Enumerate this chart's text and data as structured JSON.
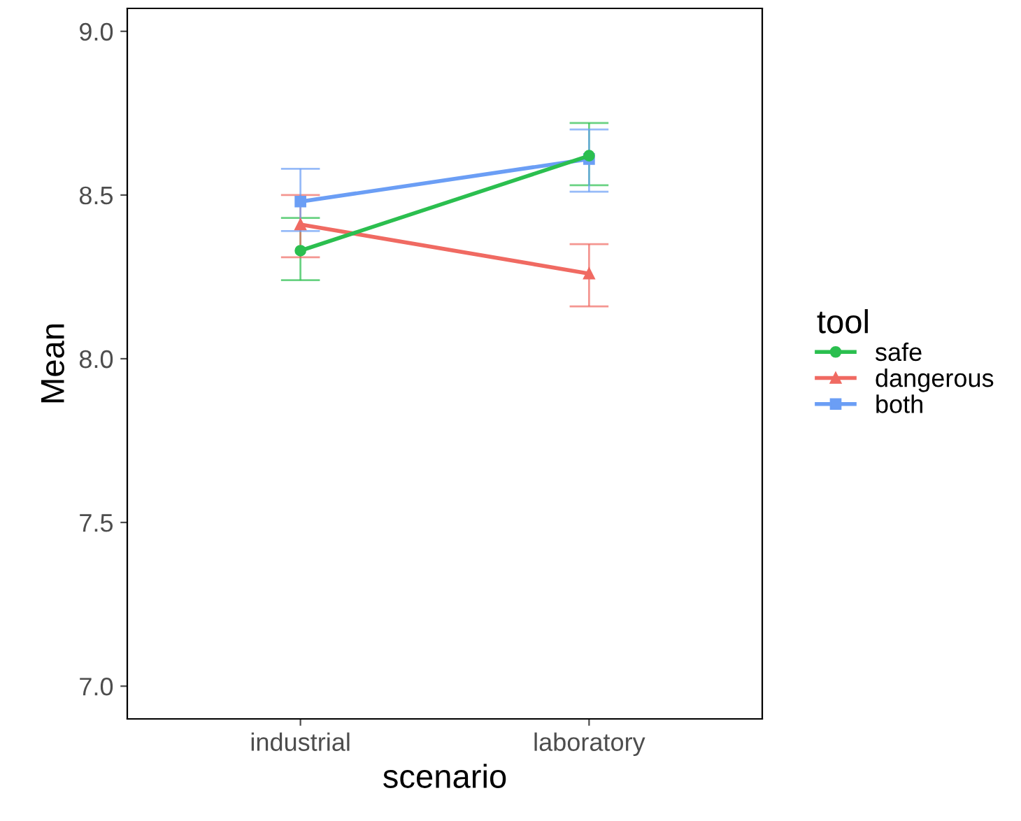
{
  "chart_data": {
    "type": "line",
    "xlabel": "scenario",
    "ylabel": "Mean",
    "legend_title": "tool",
    "categories": [
      "industrial",
      "laboratory"
    ],
    "series": [
      {
        "name": "safe",
        "color": "#2bbf4f",
        "marker": "circle",
        "values": [
          8.33,
          8.62
        ],
        "errors": [
          [
            8.24,
            8.43
          ],
          [
            8.53,
            8.72
          ]
        ]
      },
      {
        "name": "dangerous",
        "color": "#f06a62",
        "marker": "triangle",
        "values": [
          8.41,
          8.26
        ],
        "errors": [
          [
            8.31,
            8.5
          ],
          [
            8.16,
            8.35
          ]
        ]
      },
      {
        "name": "both",
        "color": "#6b9ef5",
        "marker": "square",
        "values": [
          8.48,
          8.61
        ],
        "errors": [
          [
            8.39,
            8.58
          ],
          [
            8.51,
            8.7
          ]
        ]
      }
    ],
    "ylim": [
      6.9,
      9.07
    ],
    "yticks": [
      {
        "value": 7,
        "label": "7.0"
      },
      7.5,
      {
        "value": 8,
        "label": "8.0"
      },
      8.5,
      {
        "value": 9,
        "label": "9.0"
      }
    ],
    "grid": false,
    "legend": "right",
    "line_style": "solid"
  }
}
